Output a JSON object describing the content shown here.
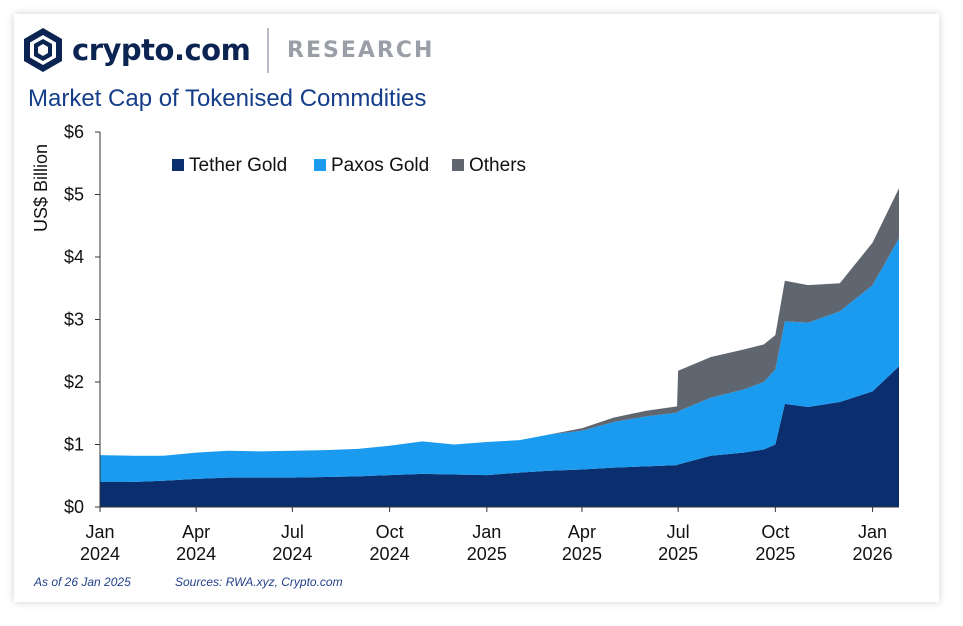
{
  "brand": {
    "name": "crypto.com",
    "section": "RESEARCH"
  },
  "colors": {
    "tether_gold": "#0a2e6e",
    "paxos_gold": "#1a9bf0",
    "others": "#5f6670",
    "title": "#153e8a",
    "brand_navy": "#0b2452"
  },
  "chart_data": {
    "type": "area",
    "stacked": true,
    "title": "Market Cap of Tokenised Commdities",
    "ylabel": "US$ Billion",
    "xlabel": "",
    "ylim": [
      0,
      6
    ],
    "grid": false,
    "legend_position": "top-left",
    "y_ticks": [
      "$0",
      "$1",
      "$2",
      "$3",
      "$4",
      "$5",
      "$6"
    ],
    "x_ticks": [
      {
        "x": "2024-01",
        "line1": "Jan",
        "line2": "2024"
      },
      {
        "x": "2024-04",
        "line1": "Apr",
        "line2": "2024"
      },
      {
        "x": "2024-07",
        "line1": "Jul",
        "line2": "2024"
      },
      {
        "x": "2024-10",
        "line1": "Oct",
        "line2": "2024"
      },
      {
        "x": "2025-01",
        "line1": "Jan",
        "line2": "2025"
      },
      {
        "x": "2025-04",
        "line1": "Apr",
        "line2": "2025"
      },
      {
        "x": "2025-07",
        "line1": "Jul",
        "line2": "2025"
      },
      {
        "x": "2025-10",
        "line1": "Oct",
        "line2": "2025"
      },
      {
        "x": "2026-01",
        "line1": "Jan",
        "line2": "2026"
      }
    ],
    "x": [
      "2024-01-01",
      "2024-02-01",
      "2024-03-01",
      "2024-04-01",
      "2024-05-01",
      "2024-06-01",
      "2024-07-01",
      "2024-08-01",
      "2024-09-01",
      "2024-10-01",
      "2024-11-01",
      "2024-12-01",
      "2025-01-01",
      "2025-02-01",
      "2025-03-01",
      "2025-04-01",
      "2025-05-01",
      "2025-06-01",
      "2025-06-30",
      "2025-07-01",
      "2025-08-01",
      "2025-09-01",
      "2025-09-20",
      "2025-10-01",
      "2025-10-10",
      "2025-11-01",
      "2025-12-01",
      "2026-01-01",
      "2026-01-26"
    ],
    "series": [
      {
        "name": "Tether Gold",
        "values": [
          0.4,
          0.4,
          0.42,
          0.45,
          0.47,
          0.47,
          0.47,
          0.48,
          0.49,
          0.51,
          0.53,
          0.52,
          0.51,
          0.55,
          0.58,
          0.6,
          0.63,
          0.65,
          0.67,
          0.68,
          0.82,
          0.87,
          0.92,
          1.0,
          1.65,
          1.6,
          1.68,
          1.85,
          2.25
        ]
      },
      {
        "name": "Paxos Gold",
        "values": [
          0.43,
          0.42,
          0.4,
          0.42,
          0.43,
          0.42,
          0.43,
          0.43,
          0.44,
          0.47,
          0.52,
          0.48,
          0.53,
          0.52,
          0.58,
          0.62,
          0.73,
          0.8,
          0.84,
          0.85,
          0.93,
          1.01,
          1.08,
          1.2,
          1.32,
          1.35,
          1.45,
          1.7,
          2.05
        ]
      },
      {
        "name": "Others",
        "values": [
          0,
          0,
          0,
          0,
          0,
          0,
          0,
          0,
          0,
          0,
          0,
          0,
          0,
          0,
          0,
          0.04,
          0.07,
          0.09,
          0.1,
          0.65,
          0.65,
          0.64,
          0.6,
          0.55,
          0.65,
          0.6,
          0.45,
          0.68,
          0.8
        ]
      }
    ]
  },
  "footer": {
    "as_of": "As of 26 Jan 2025",
    "sources": "Sources: RWA.xyz, Crypto.com"
  }
}
